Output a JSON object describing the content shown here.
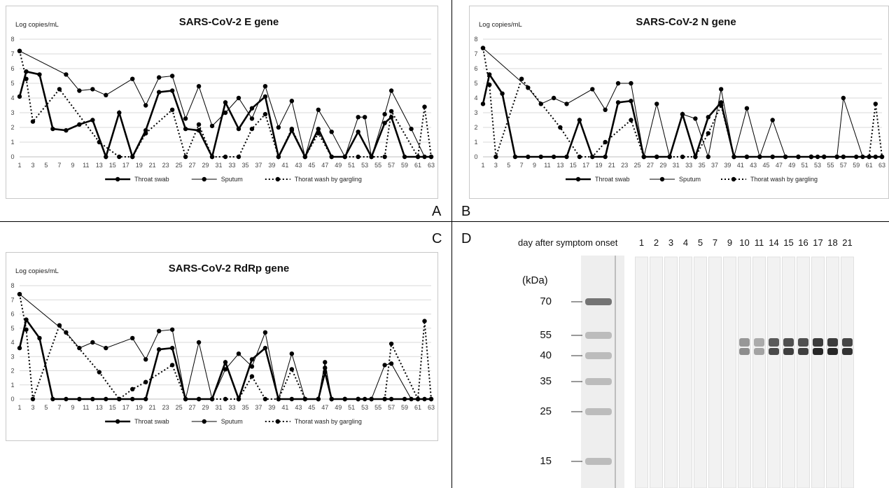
{
  "panel_letters": [
    "A",
    "B",
    "C",
    "D"
  ],
  "legend": {
    "throat": "Throat swab",
    "sputum": "Sputum",
    "gargle": "Thorat wash by gargling"
  },
  "chart_data": [
    {
      "type": "line",
      "title": "SARS-CoV-2 E gene",
      "ylabel": "Log copies/mL",
      "xlabel": "",
      "ylim": [
        0,
        8
      ],
      "xlim": [
        1,
        63
      ],
      "xticks": [
        1,
        3,
        5,
        7,
        9,
        11,
        13,
        15,
        17,
        19,
        21,
        23,
        25,
        27,
        29,
        31,
        33,
        35,
        37,
        39,
        41,
        43,
        45,
        47,
        49,
        51,
        53,
        55,
        57,
        59,
        61,
        63
      ],
      "yticks": [
        0,
        1,
        2,
        3,
        4,
        5,
        6,
        7,
        8
      ],
      "grid": true,
      "legend_position": "bottom",
      "series": [
        {
          "name": "Throat swab",
          "style": "thick",
          "x": [
            1,
            2,
            4,
            6,
            8,
            10,
            12,
            14,
            16,
            18,
            20,
            22,
            24,
            26,
            28,
            30,
            32,
            34,
            36,
            38,
            40,
            42,
            44,
            46,
            48,
            50,
            52,
            54,
            56,
            57,
            59,
            61,
            63
          ],
          "y": [
            4.1,
            5.8,
            5.6,
            1.9,
            1.8,
            2.2,
            2.5,
            0,
            3.0,
            0,
            1.8,
            4.4,
            4.5,
            1.9,
            1.8,
            0,
            3.7,
            1.9,
            3.3,
            4.1,
            0,
            1.8,
            0,
            1.9,
            0,
            0,
            1.7,
            0,
            2.3,
            2.7,
            0,
            0,
            0
          ]
        },
        {
          "name": "Sputum",
          "style": "thin",
          "x": [
            1,
            8,
            10,
            12,
            14,
            18,
            20,
            22,
            24,
            26,
            28,
            30,
            32,
            34,
            36,
            38,
            40,
            42,
            44,
            46,
            48,
            50,
            52,
            53,
            54,
            56,
            57,
            60,
            62
          ],
          "y": [
            7.2,
            5.6,
            4.5,
            4.6,
            4.2,
            5.3,
            3.5,
            5.4,
            5.5,
            2.6,
            4.8,
            2.1,
            3.0,
            4.0,
            2.6,
            4.8,
            2.0,
            3.8,
            0,
            3.2,
            1.7,
            0,
            2.7,
            2.7,
            0,
            2.9,
            4.5,
            1.9,
            0
          ]
        },
        {
          "name": "Thorat wash by gargling",
          "style": "dotted",
          "x": [
            1,
            2,
            3,
            7,
            13,
            16,
            18,
            20,
            24,
            26,
            28,
            30,
            32,
            34,
            36,
            38,
            40,
            42,
            44,
            46,
            48,
            50,
            52,
            54,
            56,
            57,
            61,
            62,
            63
          ],
          "y": [
            7.2,
            5.3,
            2.4,
            4.6,
            1.0,
            0,
            0,
            1.6,
            3.2,
            0,
            2.2,
            0,
            0,
            0,
            1.9,
            2.9,
            0,
            1.9,
            0,
            1.6,
            0,
            0,
            0,
            0,
            0,
            3.1,
            0,
            3.4,
            0
          ]
        }
      ]
    },
    {
      "type": "line",
      "title": "SARS-CoV-2 N gene",
      "ylabel": "Log copies/mL",
      "xlabel": "",
      "ylim": [
        0,
        8
      ],
      "xlim": [
        1,
        63
      ],
      "xticks": [
        1,
        3,
        5,
        7,
        9,
        11,
        13,
        15,
        17,
        19,
        21,
        23,
        25,
        27,
        29,
        31,
        33,
        35,
        37,
        39,
        41,
        43,
        45,
        47,
        49,
        51,
        53,
        55,
        57,
        59,
        61,
        63
      ],
      "yticks": [
        0,
        1,
        2,
        3,
        4,
        5,
        6,
        7,
        8
      ],
      "grid": true,
      "legend_position": "bottom",
      "series": [
        {
          "name": "Throat swab",
          "style": "thick",
          "x": [
            1,
            2,
            4,
            6,
            8,
            10,
            12,
            14,
            16,
            18,
            20,
            22,
            24,
            26,
            28,
            30,
            32,
            34,
            36,
            38,
            40,
            42,
            44,
            46,
            48,
            50,
            52,
            54,
            56,
            57,
            59,
            61,
            63
          ],
          "y": [
            3.6,
            5.6,
            4.3,
            0,
            0,
            0,
            0,
            0,
            2.5,
            0,
            0,
            3.7,
            3.8,
            0,
            0,
            0,
            2.9,
            0,
            2.7,
            3.7,
            0,
            0,
            0,
            0,
            0,
            0,
            0,
            0,
            0,
            0,
            0,
            0,
            0
          ]
        },
        {
          "name": "Sputum",
          "style": "thin",
          "x": [
            1,
            8,
            10,
            12,
            14,
            18,
            20,
            22,
            24,
            26,
            28,
            30,
            32,
            34,
            36,
            38,
            40,
            42,
            44,
            46,
            48,
            50,
            52,
            53,
            54,
            56,
            57,
            60,
            62
          ],
          "y": [
            7.4,
            4.7,
            3.6,
            4.0,
            3.6,
            4.6,
            3.2,
            5.0,
            5.0,
            0,
            3.6,
            0,
            2.9,
            2.6,
            0,
            4.6,
            0,
            3.3,
            0,
            2.5,
            0,
            0,
            0,
            0,
            0,
            0,
            4.0,
            0,
            0
          ]
        },
        {
          "name": "Thorat wash by gargling",
          "style": "dotted",
          "x": [
            1,
            2,
            3,
            7,
            13,
            16,
            18,
            20,
            24,
            26,
            28,
            30,
            32,
            34,
            36,
            38,
            40,
            42,
            44,
            46,
            48,
            50,
            52,
            54,
            56,
            57,
            61,
            62,
            63
          ],
          "y": [
            7.4,
            4.9,
            0,
            5.3,
            2.0,
            0,
            0,
            1.0,
            2.5,
            0,
            0,
            0,
            0,
            0,
            1.6,
            3.5,
            0,
            0,
            0,
            0,
            0,
            0,
            0,
            0,
            0,
            0,
            0,
            3.6,
            0
          ]
        }
      ]
    },
    {
      "type": "line",
      "title": "SARS-CoV-2 RdRp gene",
      "ylabel": "Log copies/mL",
      "xlabel": "",
      "ylim": [
        0,
        8
      ],
      "xlim": [
        1,
        63
      ],
      "xticks": [
        1,
        3,
        5,
        7,
        9,
        11,
        13,
        15,
        17,
        19,
        21,
        23,
        25,
        27,
        29,
        31,
        33,
        35,
        37,
        39,
        41,
        43,
        45,
        47,
        49,
        51,
        53,
        55,
        57,
        59,
        61,
        63
      ],
      "yticks": [
        0,
        1,
        2,
        3,
        4,
        5,
        6,
        7,
        8
      ],
      "grid": true,
      "legend_position": "bottom",
      "series": [
        {
          "name": "Throat swab",
          "style": "thick",
          "x": [
            1,
            2,
            4,
            6,
            8,
            10,
            12,
            14,
            16,
            18,
            20,
            22,
            24,
            26,
            28,
            30,
            32,
            34,
            36,
            38,
            40,
            42,
            44,
            46,
            47,
            48,
            50,
            52,
            54,
            56,
            57,
            59,
            61,
            63
          ],
          "y": [
            3.6,
            5.6,
            4.3,
            0,
            0,
            0,
            0,
            0,
            0,
            0,
            0,
            3.5,
            3.6,
            0,
            0,
            0,
            2.6,
            0,
            2.8,
            3.6,
            0,
            0,
            0,
            0,
            1.9,
            0,
            0,
            0,
            0,
            0,
            0,
            0,
            0,
            0
          ]
        },
        {
          "name": "Sputum",
          "style": "thin",
          "x": [
            1,
            8,
            10,
            12,
            14,
            18,
            20,
            22,
            24,
            26,
            28,
            30,
            32,
            34,
            36,
            38,
            40,
            42,
            44,
            46,
            47,
            48,
            50,
            52,
            53,
            54,
            56,
            57,
            60,
            62
          ],
          "y": [
            7.4,
            4.7,
            3.6,
            4.0,
            3.6,
            4.3,
            2.8,
            4.8,
            4.9,
            0,
            4.0,
            0,
            2.1,
            3.2,
            2.3,
            4.7,
            0,
            3.2,
            0,
            0,
            2.6,
            0,
            0,
            0,
            0,
            0,
            2.4,
            2.5,
            0,
            0
          ]
        },
        {
          "name": "Thorat wash by gargling",
          "style": "dotted",
          "x": [
            1,
            2,
            3,
            7,
            13,
            16,
            18,
            20,
            24,
            26,
            28,
            30,
            32,
            34,
            36,
            38,
            40,
            42,
            44,
            46,
            47,
            48,
            50,
            52,
            54,
            56,
            57,
            61,
            62,
            63
          ],
          "y": [
            7.4,
            4.9,
            0,
            5.2,
            1.9,
            0,
            0.7,
            1.2,
            2.4,
            0,
            0,
            0,
            0,
            0,
            1.6,
            0,
            0,
            2.1,
            0,
            0,
            2.2,
            0,
            0,
            0,
            0,
            0,
            3.9,
            0,
            5.5,
            0
          ]
        }
      ]
    }
  ],
  "blot": {
    "title": "day after symptom onset",
    "lanes": [
      "1",
      "2",
      "3",
      "4",
      "5",
      "7",
      "9",
      "10",
      "11",
      "14",
      "15",
      "16",
      "17",
      "18",
      "21"
    ],
    "kda_title": "(kDa)",
    "markers": [
      "70",
      "55",
      "40",
      "35",
      "25",
      "15"
    ],
    "band_intensity": [
      0,
      0,
      0,
      0,
      0,
      0,
      0,
      0.45,
      0.35,
      0.75,
      0.8,
      0.8,
      0.9,
      0.9,
      0.85
    ]
  }
}
